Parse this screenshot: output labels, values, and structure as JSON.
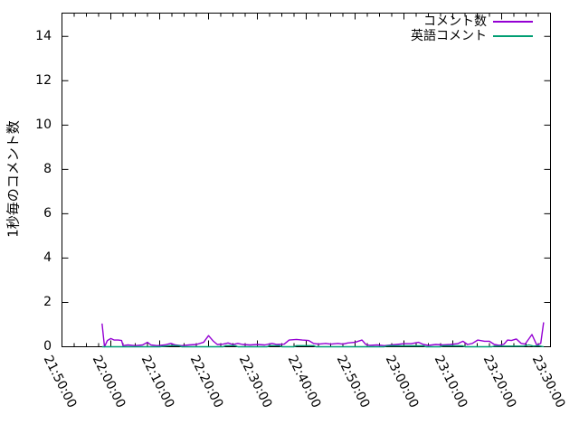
{
  "window": {
    "background": "#ffffff",
    "border_color": "#000000"
  },
  "chart_data": {
    "type": "line",
    "title": "",
    "xlabel": "",
    "ylabel": "1秒毎のコメント数",
    "x_unit": "minutes after 21:50:00",
    "x_tick_labels": [
      "21:50:00",
      "22:00:00",
      "22:10:00",
      "22:20:00",
      "22:30:00",
      "22:40:00",
      "22:50:00",
      "23:00:00",
      "23:10:00",
      "23:20:00",
      "23:30:00"
    ],
    "x_major_interval_minutes": 10,
    "x_minor_interval_minutes": 2.5,
    "xlim_minutes": [
      0,
      100
    ],
    "y_ticks": [
      0,
      2,
      4,
      6,
      8,
      10,
      12,
      14
    ],
    "ylim": [
      0,
      15.05
    ],
    "grid": false,
    "legend_position": "top-right-inside",
    "series": [
      {
        "name": "コメント数",
        "color": "#9400d3",
        "points": [
          [
            8.2,
            1.05
          ],
          [
            8.7,
            0
          ],
          [
            9.3,
            0.28
          ],
          [
            10,
            0.37
          ],
          [
            10.7,
            0.3
          ],
          [
            11.5,
            0.3
          ],
          [
            12.2,
            0.28
          ],
          [
            12.5,
            0.05
          ],
          [
            13.5,
            0.08
          ],
          [
            15,
            0.05
          ],
          [
            16.5,
            0.08
          ],
          [
            17.5,
            0.2
          ],
          [
            18.2,
            0.08
          ],
          [
            19.5,
            0.05
          ],
          [
            21,
            0.08
          ],
          [
            22.3,
            0.15
          ],
          [
            23.2,
            0.08
          ],
          [
            24.5,
            0.05
          ],
          [
            26,
            0.08
          ],
          [
            27.5,
            0.1
          ],
          [
            29,
            0.2
          ],
          [
            30,
            0.5
          ],
          [
            31,
            0.25
          ],
          [
            31.8,
            0.1
          ],
          [
            33,
            0.12
          ],
          [
            34,
            0.17
          ],
          [
            35,
            0.1
          ],
          [
            36,
            0.15
          ],
          [
            37,
            0.1
          ],
          [
            38.5,
            0.08
          ],
          [
            40,
            0.1
          ],
          [
            41.5,
            0.08
          ],
          [
            43,
            0.15
          ],
          [
            44,
            0.1
          ],
          [
            45.5,
            0.12
          ],
          [
            46.5,
            0.3
          ],
          [
            48,
            0.33
          ],
          [
            49.2,
            0.3
          ],
          [
            50.5,
            0.28
          ],
          [
            51.5,
            0.15
          ],
          [
            52.5,
            0.12
          ],
          [
            54,
            0.15
          ],
          [
            55,
            0.12
          ],
          [
            56.5,
            0.15
          ],
          [
            57.5,
            0.12
          ],
          [
            58.5,
            0.17
          ],
          [
            60,
            0.2
          ],
          [
            61.4,
            0.3
          ],
          [
            62.2,
            0.1
          ],
          [
            63,
            0.06
          ],
          [
            64.5,
            0.08
          ],
          [
            66,
            0.05
          ],
          [
            67.5,
            0.08
          ],
          [
            68.5,
            0.1
          ],
          [
            70,
            0.14
          ],
          [
            71.5,
            0.14
          ],
          [
            73,
            0.2
          ],
          [
            74,
            0.1
          ],
          [
            75,
            0.06
          ],
          [
            76.5,
            0.1
          ],
          [
            78,
            0.08
          ],
          [
            79.5,
            0.1
          ],
          [
            81,
            0.14
          ],
          [
            82.1,
            0.25
          ],
          [
            83,
            0.1
          ],
          [
            84,
            0.15
          ],
          [
            85.1,
            0.3
          ],
          [
            86.5,
            0.25
          ],
          [
            87.5,
            0.25
          ],
          [
            88.5,
            0.1
          ],
          [
            89.5,
            0.06
          ],
          [
            90.5,
            0.12
          ],
          [
            91.2,
            0.3
          ],
          [
            92,
            0.28
          ],
          [
            93,
            0.35
          ],
          [
            94,
            0.15
          ],
          [
            94.8,
            0.12
          ],
          [
            96.2,
            0.55
          ],
          [
            97.2,
            0.07
          ],
          [
            98,
            0.15
          ],
          [
            98.6,
            1.1
          ]
        ]
      },
      {
        "name": "英語コメント",
        "color": "#009e73",
        "points": [
          [
            8.2,
            0
          ],
          [
            20,
            0
          ],
          [
            22,
            0.05
          ],
          [
            24,
            0.05
          ],
          [
            24.5,
            0
          ],
          [
            33,
            0
          ],
          [
            33.5,
            0.05
          ],
          [
            35.5,
            0.05
          ],
          [
            36,
            0
          ],
          [
            42,
            0
          ],
          [
            42.5,
            0.05
          ],
          [
            44.5,
            0.05
          ],
          [
            45,
            0
          ],
          [
            47.5,
            0
          ],
          [
            48,
            0.05
          ],
          [
            51.5,
            0.05
          ],
          [
            52,
            0
          ],
          [
            66,
            0
          ],
          [
            66.5,
            0.04
          ],
          [
            74,
            0.04
          ],
          [
            74.5,
            0
          ],
          [
            77.5,
            0
          ],
          [
            78,
            0.04
          ],
          [
            82,
            0.04
          ],
          [
            82.5,
            0
          ],
          [
            88,
            0
          ],
          [
            88.5,
            0.03
          ],
          [
            94.5,
            0.03
          ],
          [
            95.6,
            0.08
          ],
          [
            96.5,
            0.03
          ],
          [
            97.5,
            0.05
          ],
          [
            98.6,
            0
          ]
        ]
      }
    ]
  }
}
